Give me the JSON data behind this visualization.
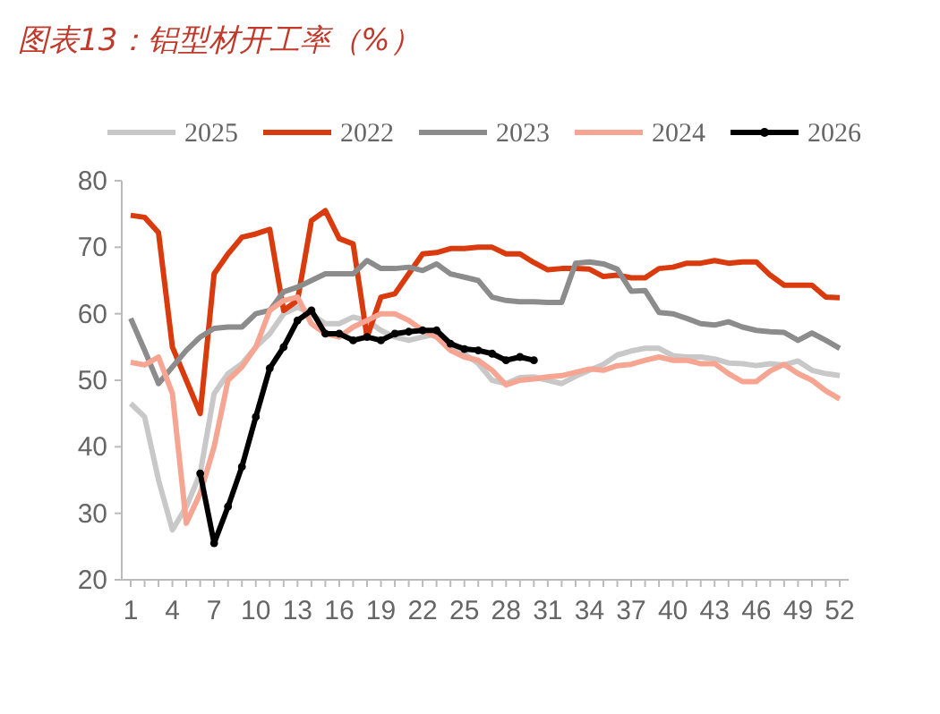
{
  "chart_data": {
    "type": "line",
    "title": "图表13：铝型材开工率（%）",
    "categories": [
      "1",
      null,
      null,
      "4",
      null,
      null,
      "7",
      null,
      null,
      "10",
      null,
      null,
      "13",
      null,
      null,
      "16",
      null,
      null,
      "19",
      null,
      null,
      "22",
      null,
      null,
      "25",
      null,
      null,
      "28",
      null,
      null,
      "31",
      null,
      null,
      "34",
      null,
      null,
      "37",
      null,
      null,
      "40",
      null,
      null,
      "43",
      null,
      null,
      "46",
      null,
      null,
      "49",
      null,
      null,
      "52"
    ],
    "ylim": [
      20,
      80
    ],
    "yticks": [
      20,
      30,
      40,
      50,
      60,
      70,
      80
    ],
    "grid": false,
    "legend": "top",
    "line_style": "solid",
    "series": [
      {
        "name": "2025",
        "color": "#c8c8c8",
        "marker": "none",
        "values": [
          46.5,
          44.5,
          35,
          27.5,
          31,
          36,
          48,
          51,
          52.5,
          55,
          57,
          60,
          61,
          60,
          58.5,
          58.5,
          59.5,
          59,
          57.5,
          56.5,
          56,
          56.5,
          57,
          55.5,
          54,
          52.5,
          50,
          49.5,
          50.4,
          50.5,
          50,
          49.5,
          50.6,
          51.5,
          52.4,
          53.8,
          54.4,
          54.8,
          54.8,
          53.7,
          53.5,
          53.5,
          53.2,
          52.6,
          52.5,
          52.2,
          52.5,
          52.3,
          52.9,
          51.5,
          51,
          50.7
        ]
      },
      {
        "name": "2022",
        "color": "#d93a0e",
        "marker": "none",
        "values": [
          74.8,
          74.5,
          72.2,
          55,
          50,
          45,
          66,
          69,
          71.5,
          72,
          72.7,
          60.5,
          62,
          74,
          75.5,
          71.3,
          70.5,
          56.5,
          62.5,
          63,
          66,
          69,
          69.2,
          69.8,
          69.8,
          70,
          70,
          69,
          69,
          67.7,
          66.6,
          66.8,
          66.8,
          66.7,
          65.6,
          65.8,
          65.4,
          65.4,
          66.8,
          67,
          67.6,
          67.6,
          68,
          67.6,
          67.8,
          67.8,
          65.8,
          64.3,
          64.3,
          64.3,
          62.5,
          62.4
        ]
      },
      {
        "name": "2023",
        "color": "#8c8c8c",
        "marker": "none",
        "values": [
          59.3,
          54.5,
          49.5,
          52,
          54.5,
          56.5,
          57.8,
          58,
          58,
          60,
          60.5,
          63.3,
          64,
          65,
          66,
          66,
          66,
          68,
          66.8,
          66.8,
          67,
          66.5,
          67.5,
          66,
          65.5,
          65,
          62.5,
          62,
          61.8,
          61.8,
          61.7,
          61.7,
          67.6,
          67.8,
          67.5,
          66.7,
          63.4,
          63.5,
          60.2,
          60,
          59.3,
          58.5,
          58.3,
          58.8,
          58,
          57.5,
          57.3,
          57.2,
          56,
          57.1,
          56,
          54.8
        ]
      },
      {
        "name": "2024",
        "color": "#f5a592",
        "marker": "none",
        "values": [
          52.7,
          52.3,
          53.5,
          48,
          28.5,
          33,
          40,
          50,
          52,
          55,
          60.5,
          62,
          62.5,
          58.5,
          57,
          56.5,
          58,
          59,
          60,
          60,
          59,
          57.5,
          56.5,
          54.5,
          53.5,
          53,
          51.5,
          49.3,
          50,
          50.2,
          50.5,
          50.7,
          51.2,
          51.7,
          51.5,
          52.2,
          52.4,
          53,
          53.5,
          53,
          53,
          52.5,
          52.5,
          51,
          49.8,
          49.8,
          51.4,
          52.4,
          51,
          50,
          48.4,
          47.2
        ]
      },
      {
        "name": "2026",
        "color": "#000000",
        "marker": "circle",
        "values": [
          null,
          null,
          null,
          null,
          null,
          36,
          25.5,
          31,
          37,
          44.5,
          51.8,
          55,
          59,
          60.5,
          57,
          57,
          56,
          56.5,
          56,
          57,
          57.3,
          57.5,
          57.5,
          55.5,
          54.7,
          54.5,
          54,
          53,
          53.5,
          53,
          null,
          null,
          null,
          null,
          null,
          null,
          null,
          null,
          null,
          null,
          null,
          null,
          null,
          null,
          null,
          null,
          null,
          null,
          null,
          null,
          null,
          null
        ]
      }
    ]
  }
}
